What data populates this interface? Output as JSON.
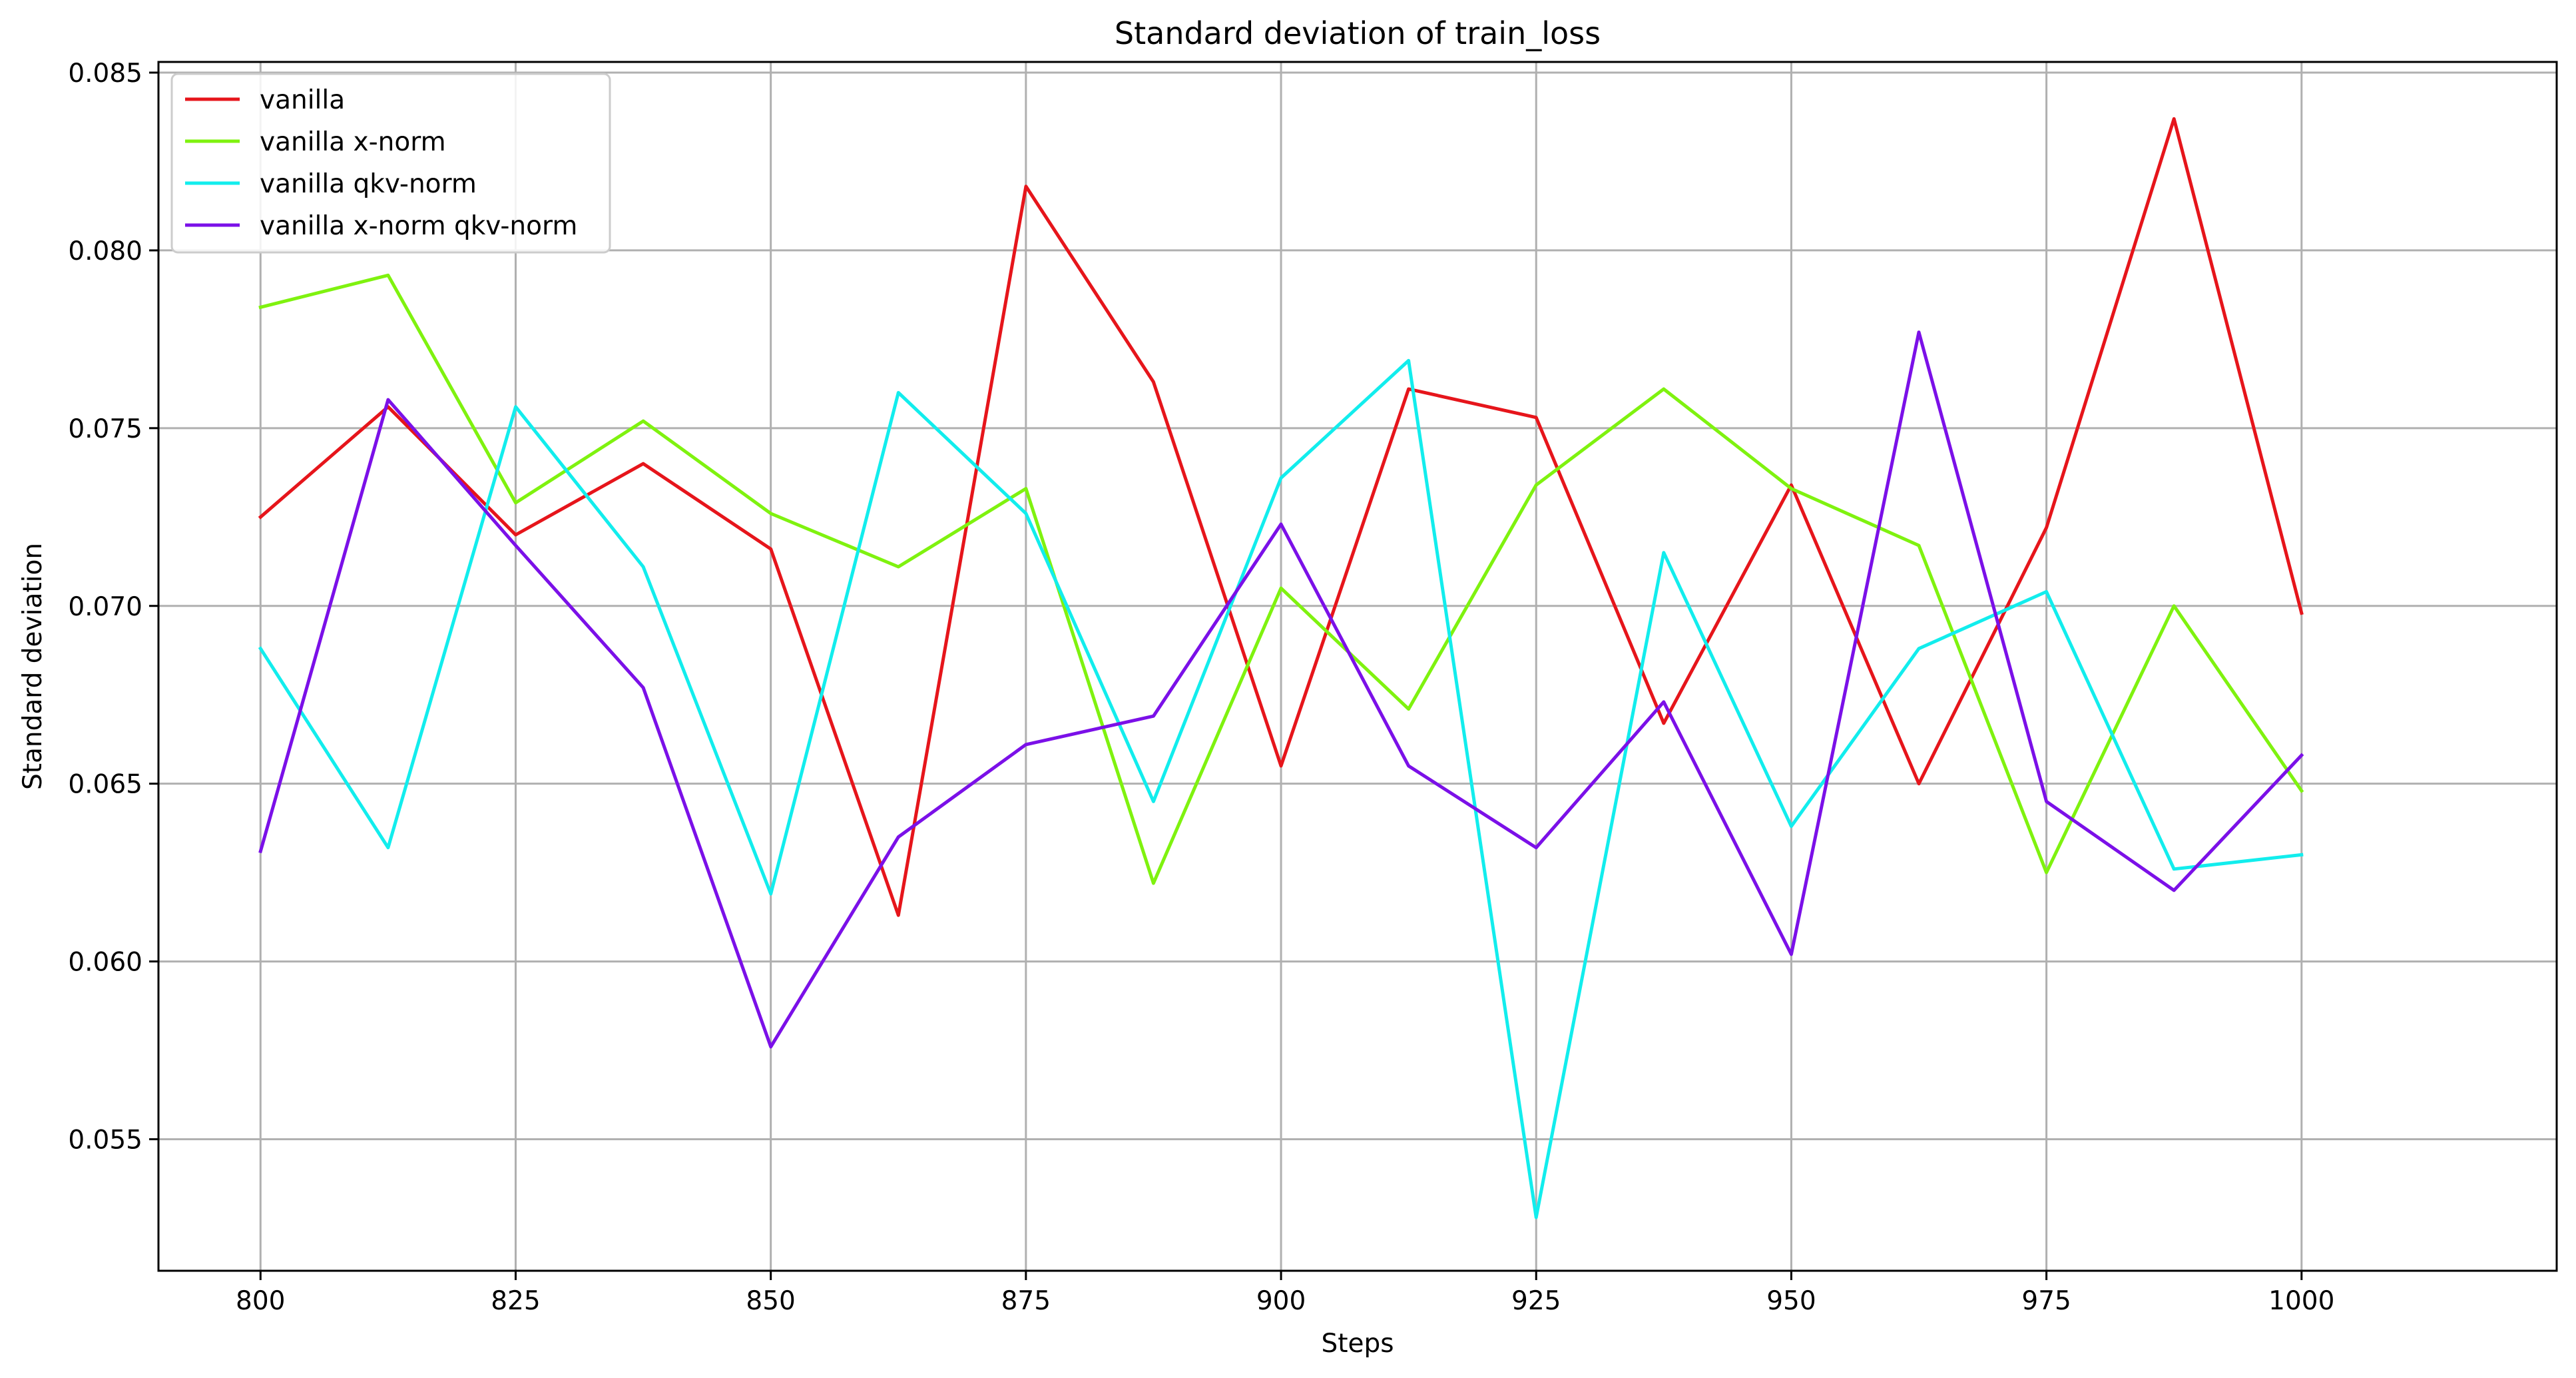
{
  "chart_data": {
    "type": "line",
    "title": "Standard deviation of train_loss",
    "xlabel": "Steps",
    "ylabel": "Standard deviation",
    "x": [
      800,
      812.5,
      825,
      837.5,
      850,
      862.5,
      875,
      887.5,
      900,
      912.5,
      925,
      937.5,
      950,
      962.5,
      975,
      987.5,
      1000
    ],
    "xlim": [
      790,
      1025
    ],
    "ylim": [
      0.0513,
      0.0853
    ],
    "xticks": [
      800,
      825,
      850,
      875,
      900,
      925,
      950,
      975,
      1000
    ],
    "xtick_labels": [
      "800",
      "825",
      "850",
      "875",
      "900",
      "925",
      "950",
      "975",
      "1000"
    ],
    "yticks": [
      0.055,
      0.06,
      0.065,
      0.07,
      0.075,
      0.08,
      0.085
    ],
    "ytick_labels": [
      "0.055",
      "0.060",
      "0.065",
      "0.070",
      "0.075",
      "0.080",
      "0.085"
    ],
    "grid": true,
    "legend_position": "top-left",
    "series": [
      {
        "name": "vanilla",
        "color": "#e6151b",
        "values": [
          0.0725,
          0.0756,
          0.072,
          0.074,
          0.0716,
          0.0613,
          0.0818,
          0.0763,
          0.0655,
          0.0761,
          0.0753,
          0.0667,
          0.0734,
          0.065,
          0.0722,
          0.0837,
          0.0698
        ]
      },
      {
        "name": "vanilla x-norm",
        "color": "#7ff20f",
        "values": [
          0.0784,
          0.0793,
          0.0729,
          0.0752,
          0.0726,
          0.0711,
          0.0733,
          0.0622,
          0.0705,
          0.0671,
          0.0734,
          0.0761,
          0.0733,
          0.0717,
          0.0625,
          0.07,
          0.0648
        ]
      },
      {
        "name": "vanilla qkv-norm",
        "color": "#12eded",
        "values": [
          0.0688,
          0.0632,
          0.0756,
          0.0711,
          0.0619,
          0.076,
          0.0726,
          0.0645,
          0.0736,
          0.0769,
          0.0528,
          0.0715,
          0.0638,
          0.0688,
          0.0704,
          0.0626,
          0.063
        ]
      },
      {
        "name": "vanilla x-norm qkv-norm",
        "color": "#7b10e8",
        "values": [
          0.0631,
          0.0758,
          0.0717,
          0.0677,
          0.0576,
          0.0635,
          0.0661,
          0.0669,
          0.0723,
          0.0655,
          0.0632,
          0.0673,
          0.0602,
          0.0777,
          0.0645,
          0.062,
          0.0658
        ]
      }
    ]
  }
}
